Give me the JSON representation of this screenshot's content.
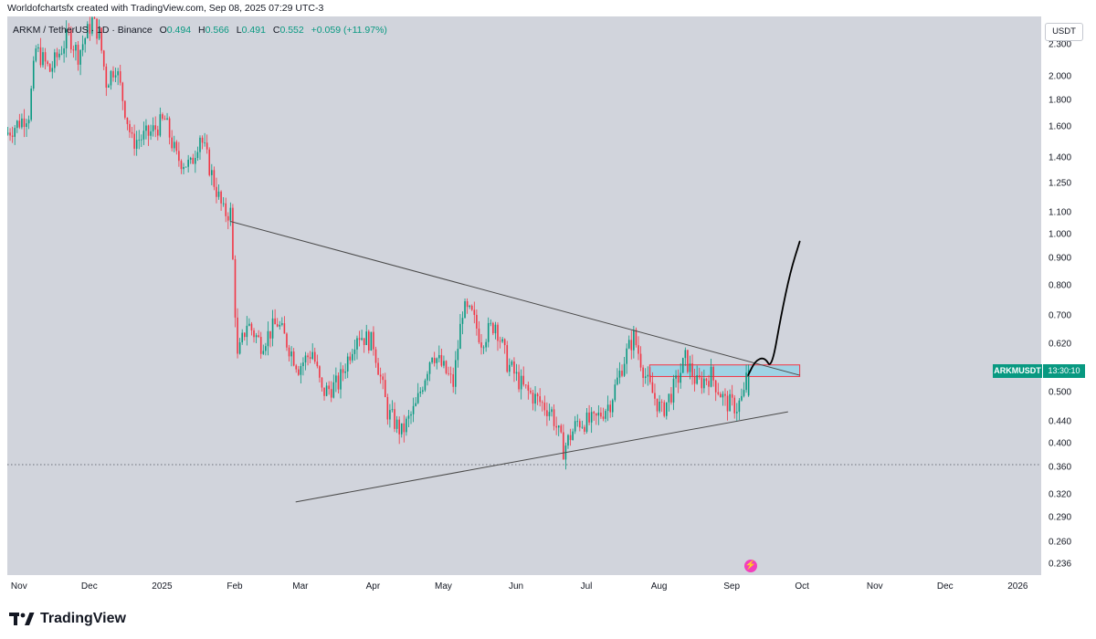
{
  "credit": "Worldofchartsfx created with TradingView.com, Sep 08, 2025 07:29 UTC-3",
  "legend": {
    "symbol": "ARKM / TetherUS · 1D · Binance",
    "open_label": "O",
    "open": "0.494",
    "high_label": "H",
    "high": "0.566",
    "low_label": "L",
    "low": "0.491",
    "close_label": "C",
    "close": "0.552",
    "change": "+0.059 (+11.97%)"
  },
  "currency": "USDT",
  "symbol_badge": "ARKMUSDT",
  "countdown": "13:30:10",
  "event_icon": "lightning",
  "brand": {
    "logo": "tradingview-logo",
    "name": "TradingView"
  },
  "colors": {
    "up": "#089981",
    "down": "#f23645",
    "background": "#d1d4dc",
    "trendline": "#4a4a4a",
    "zone_fill": "#8fd3e8",
    "zone_border": "#f23645",
    "projection": "#000000"
  },
  "chart_data": {
    "type": "candlestick",
    "y_scale": "log",
    "ylim": [
      0.225,
      2.6
    ],
    "y_ticks": [
      2.3,
      2.0,
      1.8,
      1.6,
      1.4,
      1.25,
      1.1,
      1.0,
      0.9,
      0.8,
      0.7,
      0.62,
      0.5,
      0.44,
      0.4,
      0.36,
      0.32,
      0.29,
      0.26,
      0.236
    ],
    "y_tick_labels": [
      "2.300",
      "2.000",
      "1.800",
      "1.600",
      "1.400",
      "1.250",
      "1.100",
      "1.000",
      "0.900",
      "0.800",
      "0.700",
      "0.620",
      "0.500",
      "0.440",
      "0.400",
      "0.360",
      "0.320",
      "0.290",
      "0.260",
      "0.236"
    ],
    "x_tick_labels": [
      "Nov",
      "Dec",
      "2025",
      "Feb",
      "Mar",
      "Apr",
      "May",
      "Jun",
      "Jul",
      "Aug",
      "Sep",
      "Oct",
      "Nov",
      "Dec",
      "2026"
    ],
    "x_tick_dates": [
      "2024-11-01",
      "2024-12-01",
      "2025-01-01",
      "2025-02-01",
      "2025-03-01",
      "2025-04-01",
      "2025-05-01",
      "2025-06-01",
      "2025-07-01",
      "2025-08-01",
      "2025-09-01",
      "2025-10-01",
      "2025-11-01",
      "2025-12-01",
      "2026-01-01"
    ],
    "x_range": [
      "2024-10-27",
      "2026-01-11"
    ],
    "price_path": [
      [
        "2024-10-27",
        1.55
      ],
      [
        "2024-11-06",
        1.7
      ],
      [
        "2024-11-09",
        2.25
      ],
      [
        "2024-11-15",
        2.05
      ],
      [
        "2024-11-23",
        2.4
      ],
      [
        "2024-11-27",
        2.2
      ],
      [
        "2024-12-03",
        2.55
      ],
      [
        "2024-12-06",
        2.4
      ],
      [
        "2024-12-09",
        1.95
      ],
      [
        "2024-12-13",
        2.1
      ],
      [
        "2024-12-20",
        1.5
      ],
      [
        "2024-12-27",
        1.55
      ],
      [
        "2025-01-03",
        1.65
      ],
      [
        "2025-01-08",
        1.4
      ],
      [
        "2025-01-14",
        1.35
      ],
      [
        "2025-01-18",
        1.55
      ],
      [
        "2025-01-23",
        1.3
      ],
      [
        "2025-01-28",
        1.1
      ],
      [
        "2025-01-31",
        1.1
      ],
      [
        "2025-02-03",
        0.58
      ],
      [
        "2025-02-07",
        0.68
      ],
      [
        "2025-02-13",
        0.62
      ],
      [
        "2025-02-20",
        0.68
      ],
      [
        "2025-03-01",
        0.56
      ],
      [
        "2025-03-07",
        0.6
      ],
      [
        "2025-03-11",
        0.5
      ],
      [
        "2025-03-18",
        0.52
      ],
      [
        "2025-03-26",
        0.65
      ],
      [
        "2025-04-02",
        0.62
      ],
      [
        "2025-04-08",
        0.46
      ],
      [
        "2025-04-14",
        0.42
      ],
      [
        "2025-04-20",
        0.47
      ],
      [
        "2025-04-27",
        0.6
      ],
      [
        "2025-05-06",
        0.52
      ],
      [
        "2025-05-10",
        0.72
      ],
      [
        "2025-05-14",
        0.7
      ],
      [
        "2025-05-18",
        0.63
      ],
      [
        "2025-05-24",
        0.68
      ],
      [
        "2025-05-29",
        0.57
      ],
      [
        "2025-06-05",
        0.51
      ],
      [
        "2025-06-12",
        0.48
      ],
      [
        "2025-06-17",
        0.46
      ],
      [
        "2025-06-22",
        0.39
      ],
      [
        "2025-06-28",
        0.44
      ],
      [
        "2025-07-05",
        0.44
      ],
      [
        "2025-07-12",
        0.48
      ],
      [
        "2025-07-18",
        0.58
      ],
      [
        "2025-07-22",
        0.64
      ],
      [
        "2025-07-28",
        0.52
      ],
      [
        "2025-08-03",
        0.46
      ],
      [
        "2025-08-09",
        0.52
      ],
      [
        "2025-08-13",
        0.58
      ],
      [
        "2025-08-18",
        0.52
      ],
      [
        "2025-08-24",
        0.54
      ],
      [
        "2025-08-30",
        0.48
      ],
      [
        "2025-09-04",
        0.47
      ],
      [
        "2025-09-07",
        0.494
      ],
      [
        "2025-09-08",
        0.552
      ]
    ],
    "last_candle": {
      "date": "2025-09-08",
      "open": 0.494,
      "high": 0.566,
      "low": 0.491,
      "close": 0.552
    },
    "annotations": {
      "upper_trendline": [
        [
          "2025-01-30",
          1.06
        ],
        [
          "2025-09-30",
          0.54
        ]
      ],
      "lower_trendline": [
        [
          "2025-02-27",
          0.31
        ],
        [
          "2025-09-25",
          0.46
        ]
      ],
      "zone": {
        "from": "2025-07-28",
        "to": "2025-09-30",
        "bottom": 0.537,
        "top": 0.565
      },
      "horizontal_line": 0.365,
      "projection_path": [
        [
          "2025-09-08",
          0.54
        ],
        [
          "2025-09-11",
          0.575
        ],
        [
          "2025-09-15",
          0.585
        ],
        [
          "2025-09-18",
          0.555
        ],
        [
          "2025-09-22",
          0.7
        ],
        [
          "2025-09-26",
          0.85
        ],
        [
          "2025-09-30",
          0.97
        ]
      ]
    }
  }
}
